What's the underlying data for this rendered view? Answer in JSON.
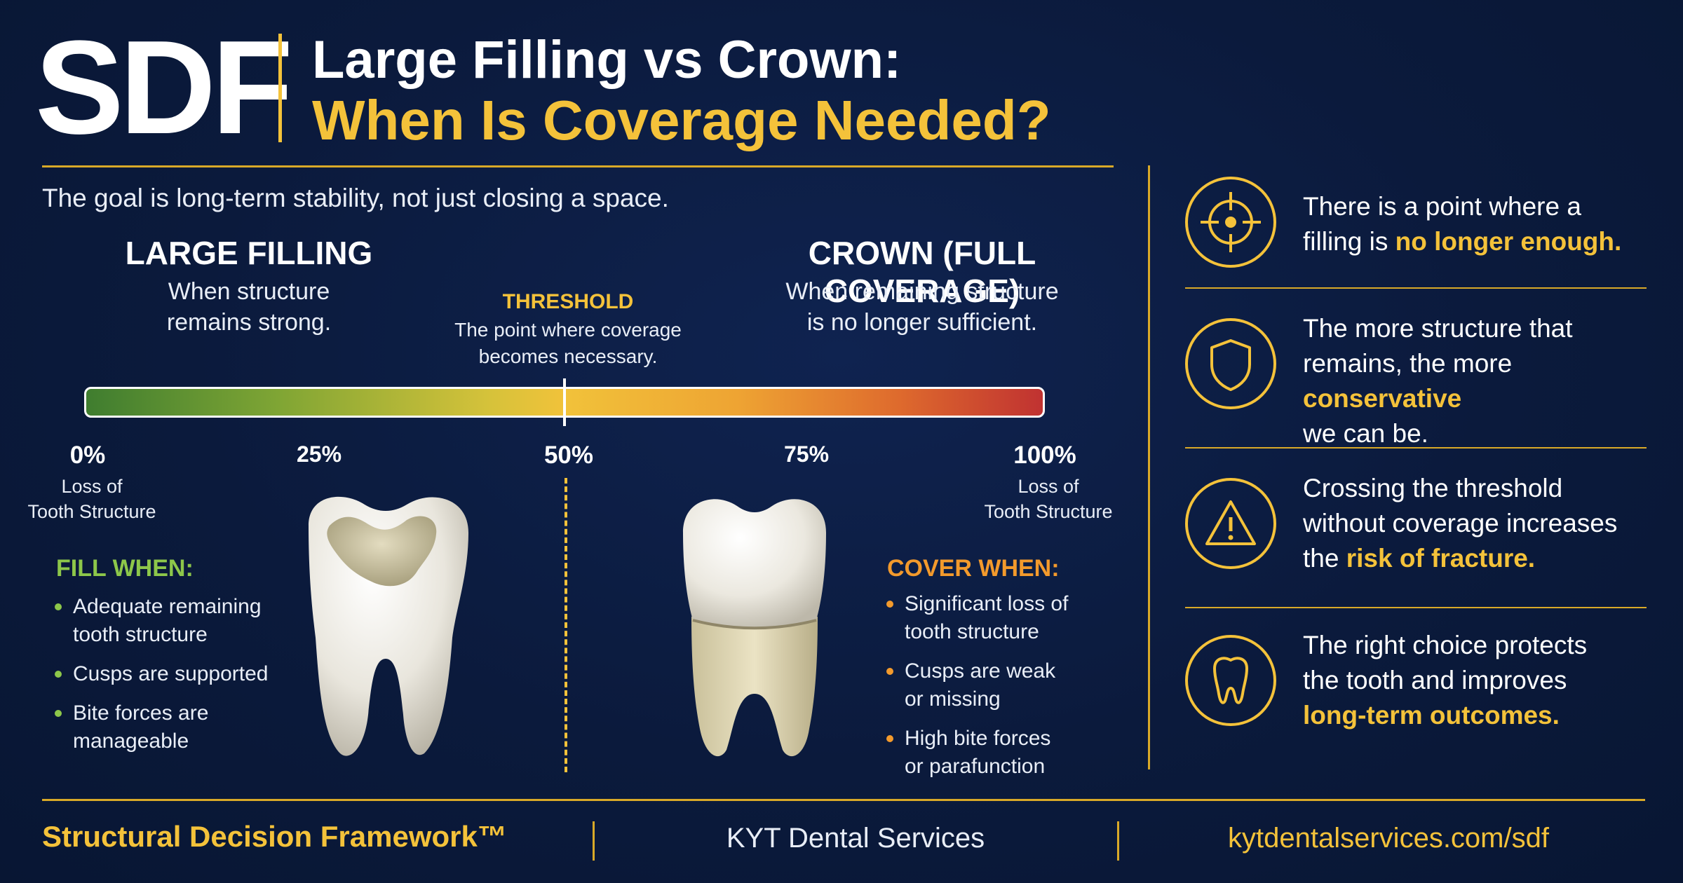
{
  "header": {
    "logo": "SDF",
    "title_line1": "Large Filling vs Crown:",
    "title_line2": "When Is Coverage Needed?"
  },
  "intro": "The goal is long-term stability, not just closing a space.",
  "large_filling": {
    "title": "LARGE FILLING",
    "subtitle_line1": "When structure",
    "subtitle_line2": "remains strong."
  },
  "crown": {
    "title": "CROWN (FULL COVERAGE)",
    "subtitle_line1": "When remaining structure",
    "subtitle_line2": "is no longer sufficient."
  },
  "threshold": {
    "title": "THRESHOLD",
    "subtitle_line1": "The point where coverage",
    "subtitle_line2": "becomes necessary.",
    "marker_percent": 50
  },
  "scale": {
    "ticks": [
      "0%",
      "25%",
      "50%",
      "75%",
      "100%"
    ],
    "start_note_line1": "Loss of",
    "start_note_line2": "Tooth Structure",
    "end_note_line1": "Loss of",
    "end_note_line2": "Tooth Structure",
    "gradient_colors": [
      "#3f7d2f",
      "#f1c23a",
      "#c03231"
    ]
  },
  "fill_when": {
    "title": "FILL WHEN:",
    "color": "#8dc74a",
    "items": [
      {
        "line1": "Adequate remaining",
        "line2": "tooth structure"
      },
      {
        "line1": "Cusps are supported",
        "line2": ""
      },
      {
        "line1": "Bite forces are",
        "line2": "manageable"
      }
    ]
  },
  "cover_when": {
    "title": "COVER WHEN:",
    "color": "#f39a2c",
    "items": [
      {
        "line1": "Significant loss of",
        "line2": "tooth structure"
      },
      {
        "line1": "Cusps are weak",
        "line2": "or missing"
      },
      {
        "line1": "High bite forces",
        "line2": "or parafunction"
      }
    ]
  },
  "points": [
    {
      "icon": "target-icon",
      "line1": "There is a point where a",
      "line2_plain": "filling is ",
      "line2_highlight": "no longer enough.",
      "line3_plain": "",
      "line3_highlight": ""
    },
    {
      "icon": "shield-icon",
      "line1": "The more structure that",
      "line2_plain": "remains, the more ",
      "line2_highlight": "conservative",
      "line3_plain": "we can be.",
      "line3_highlight": ""
    },
    {
      "icon": "warning-icon",
      "line1": "Crossing the threshold",
      "line2_plain": "without coverage increases",
      "line2_highlight": "",
      "line3_plain": "the ",
      "line3_highlight": "risk of fracture."
    },
    {
      "icon": "tooth-icon",
      "line1": "The right choice protects",
      "line2_plain": "the tooth and improves",
      "line2_highlight": "",
      "line3_plain": "",
      "line3_highlight": "long-term outcomes."
    }
  ],
  "footer": {
    "brand": "Structural Decision Framework™",
    "company": "KYT Dental Services",
    "url": "kytdentalservices.com/sdf"
  },
  "colors": {
    "background": "#0b1a3c",
    "accent": "#f4c23a"
  }
}
